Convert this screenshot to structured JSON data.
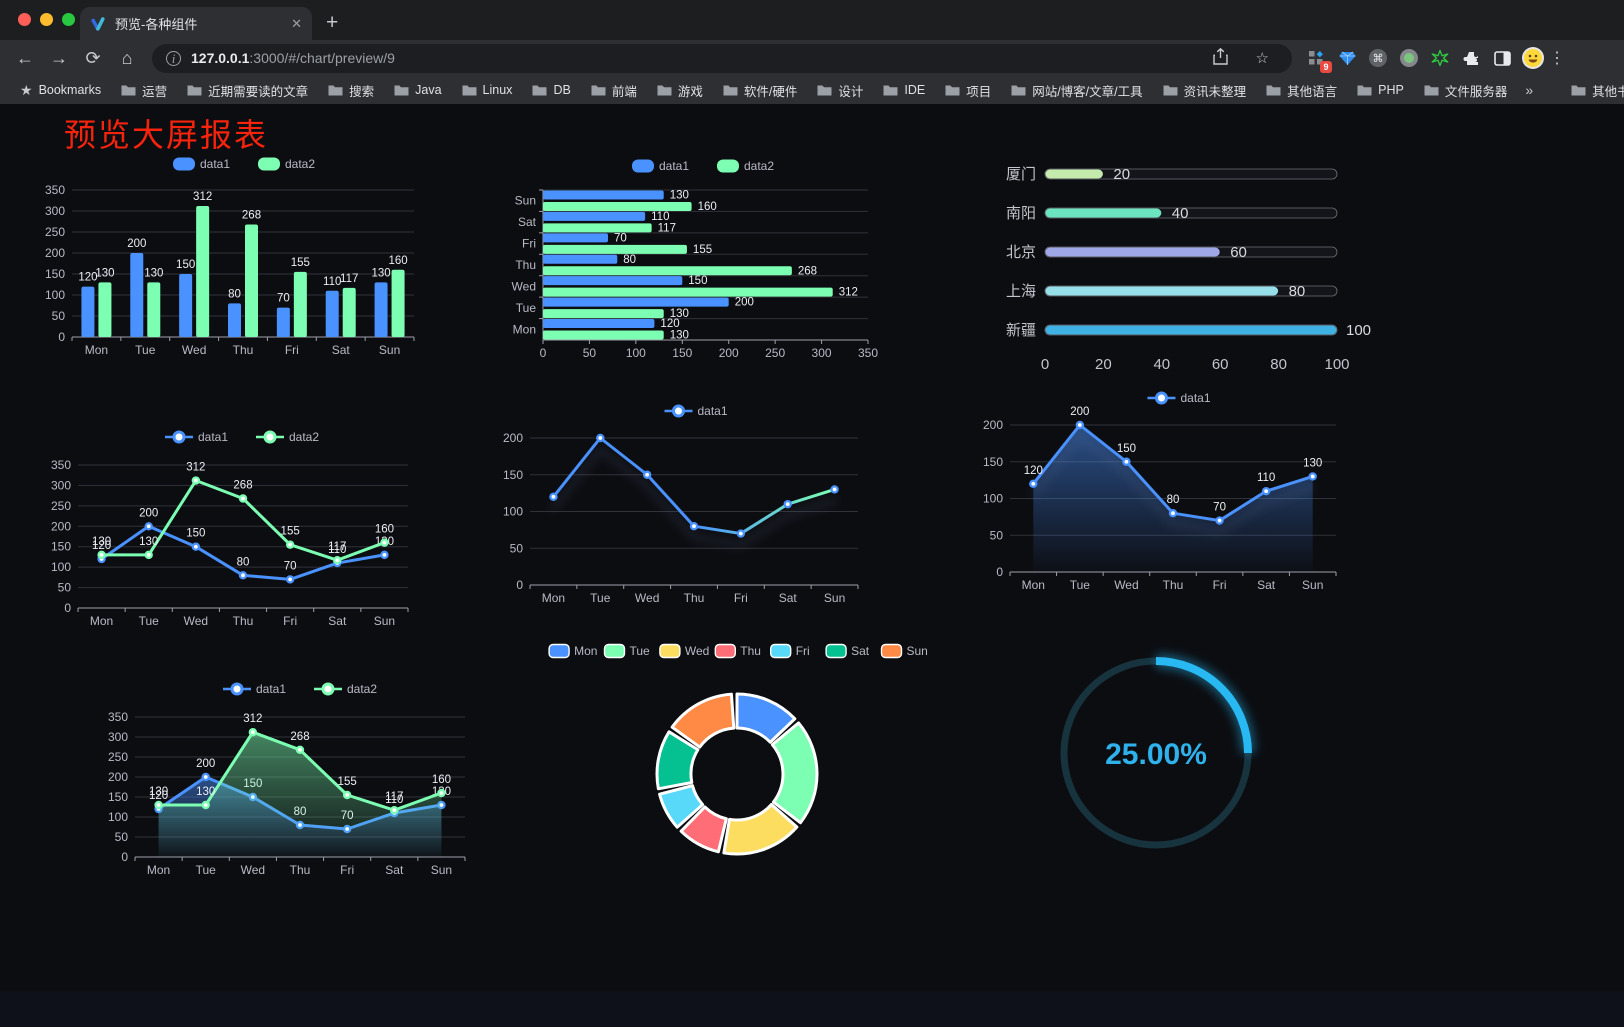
{
  "browser": {
    "tab_title": "预览-各种组件",
    "url_host": "127.0.0.1",
    "url_rest": ":3000/#/chart/preview/9",
    "bookmarks_label": "Bookmarks",
    "bookmark_folders": [
      "运营",
      "近期需要读的文章",
      "搜索",
      "Java",
      "Linux",
      "DB",
      "前端",
      "游戏",
      "软件/硬件",
      "设计",
      "IDE",
      "项目",
      "网站/博客/文章/工具",
      "资讯未整理",
      "其他语言",
      "PHP",
      "文件服务器"
    ],
    "bookmarks_overflow": "»",
    "other_bookmarks": "其他书签",
    "extension_badge": "9",
    "new_tab_plus": "+",
    "close_glyph": "✕"
  },
  "page": {
    "title": "预览大屏报表",
    "title_color": "#f6230d",
    "background": "#0c0d11"
  },
  "chart_data": [
    {
      "id": "bar1",
      "type": "bar",
      "categories": [
        "Mon",
        "Tue",
        "Wed",
        "Thu",
        "Fri",
        "Sat",
        "Sun"
      ],
      "series": [
        {
          "name": "data1",
          "color": "#4992ff",
          "values": [
            120,
            200,
            150,
            80,
            70,
            110,
            130
          ]
        },
        {
          "name": "data2",
          "color": "#7cffb2",
          "values": [
            130,
            130,
            312,
            268,
            155,
            117,
            160
          ]
        }
      ],
      "ylim": [
        0,
        350
      ],
      "yticks": [
        0,
        50,
        100,
        150,
        200,
        250,
        300,
        350
      ],
      "legend_position": "top",
      "grid": true,
      "value_labels": true
    },
    {
      "id": "hbar",
      "type": "bar-horizontal",
      "categories": [
        "Mon",
        "Tue",
        "Wed",
        "Thu",
        "Fri",
        "Sat",
        "Sun"
      ],
      "series": [
        {
          "name": "data1",
          "color": "#4992ff",
          "values": [
            120,
            200,
            150,
            80,
            70,
            110,
            130
          ]
        },
        {
          "name": "data2",
          "color": "#7cffb2",
          "values": [
            130,
            130,
            312,
            268,
            155,
            117,
            160
          ]
        }
      ],
      "xlim": [
        0,
        350
      ],
      "xticks": [
        0,
        50,
        100,
        150,
        200,
        250,
        300,
        350
      ],
      "legend_position": "top",
      "grid": true,
      "value_labels": true
    },
    {
      "id": "prog",
      "type": "progress-bars",
      "items": [
        {
          "label": "厦门",
          "value": 20,
          "color": "#c4ebad"
        },
        {
          "label": "南阳",
          "value": 40,
          "color": "#6be6c1"
        },
        {
          "label": "北京",
          "value": 60,
          "color": "#a0a7e6"
        },
        {
          "label": "上海",
          "value": 80,
          "color": "#96dee8"
        },
        {
          "label": "新疆",
          "value": 100,
          "color": "#3fb1e3"
        }
      ],
      "max": 100,
      "xticks": [
        0,
        20,
        40,
        60,
        80,
        100
      ]
    },
    {
      "id": "line4",
      "type": "line",
      "categories": [
        "Mon",
        "Tue",
        "Wed",
        "Thu",
        "Fri",
        "Sat",
        "Sun"
      ],
      "series": [
        {
          "name": "data1",
          "color": "#4992ff",
          "values": [
            120,
            200,
            150,
            80,
            70,
            110,
            130
          ]
        },
        {
          "name": "data2",
          "color": "#7cffb2",
          "values": [
            130,
            130,
            312,
            268,
            155,
            117,
            160
          ]
        }
      ],
      "ylim": [
        0,
        350
      ],
      "yticks": [
        0,
        50,
        100,
        150,
        200,
        250,
        300,
        350
      ],
      "legend_position": "top",
      "grid": true,
      "value_labels": true
    },
    {
      "id": "line5",
      "type": "line-gradient",
      "categories": [
        "Mon",
        "Tue",
        "Wed",
        "Thu",
        "Fri",
        "Sat",
        "Sun"
      ],
      "series": [
        {
          "name": "data1",
          "color": "#4992ff",
          "gradient": [
            "#4992ff",
            "#4992ff",
            "#7cffb2"
          ],
          "values": [
            120,
            200,
            150,
            80,
            70,
            110,
            130
          ]
        }
      ],
      "ylim": [
        0,
        200
      ],
      "yticks": [
        0,
        50,
        100,
        150,
        200
      ],
      "legend_position": "top",
      "grid": true,
      "value_labels": false
    },
    {
      "id": "area6",
      "type": "area",
      "categories": [
        "Mon",
        "Tue",
        "Wed",
        "Thu",
        "Fri",
        "Sat",
        "Sun"
      ],
      "series": [
        {
          "name": "data1",
          "color": "#4992ff",
          "values": [
            120,
            200,
            150,
            80,
            70,
            110,
            130
          ]
        }
      ],
      "ylim": [
        0,
        200
      ],
      "yticks": [
        0,
        50,
        100,
        150,
        200
      ],
      "legend_position": "top",
      "grid": true,
      "value_labels": true
    },
    {
      "id": "area7",
      "type": "area",
      "categories": [
        "Mon",
        "Tue",
        "Wed",
        "Thu",
        "Fri",
        "Sat",
        "Sun"
      ],
      "series": [
        {
          "name": "data1",
          "color": "#4992ff",
          "values": [
            120,
            200,
            150,
            80,
            70,
            110,
            130
          ]
        },
        {
          "name": "data2",
          "color": "#7cffb2",
          "values": [
            130,
            130,
            312,
            268,
            155,
            117,
            160
          ]
        }
      ],
      "ylim": [
        0,
        350
      ],
      "yticks": [
        0,
        50,
        100,
        150,
        200,
        250,
        300,
        350
      ],
      "legend_position": "top",
      "grid": true,
      "value_labels": true
    },
    {
      "id": "donut",
      "type": "pie",
      "inner_radius_ratio": 0.57,
      "items": [
        {
          "label": "Mon",
          "value": 120,
          "color": "#4992ff"
        },
        {
          "label": "Tue",
          "value": 200,
          "color": "#7cffb2"
        },
        {
          "label": "Wed",
          "value": 150,
          "color": "#fddd60"
        },
        {
          "label": "Thu",
          "value": 80,
          "color": "#ff6e76"
        },
        {
          "label": "Fri",
          "value": 70,
          "color": "#58d9f9"
        },
        {
          "label": "Sat",
          "value": 110,
          "color": "#05c091"
        },
        {
          "label": "Sun",
          "value": 130,
          "color": "#ff8a45"
        }
      ],
      "legend_position": "top",
      "segment_border_color": "#ffffff"
    },
    {
      "id": "gauge",
      "type": "ring-progress",
      "percent": 25,
      "text": "25.00%",
      "arc_color": "#28b8f2",
      "track_color": "#17333e",
      "text_color": "#2fb2ec"
    }
  ]
}
